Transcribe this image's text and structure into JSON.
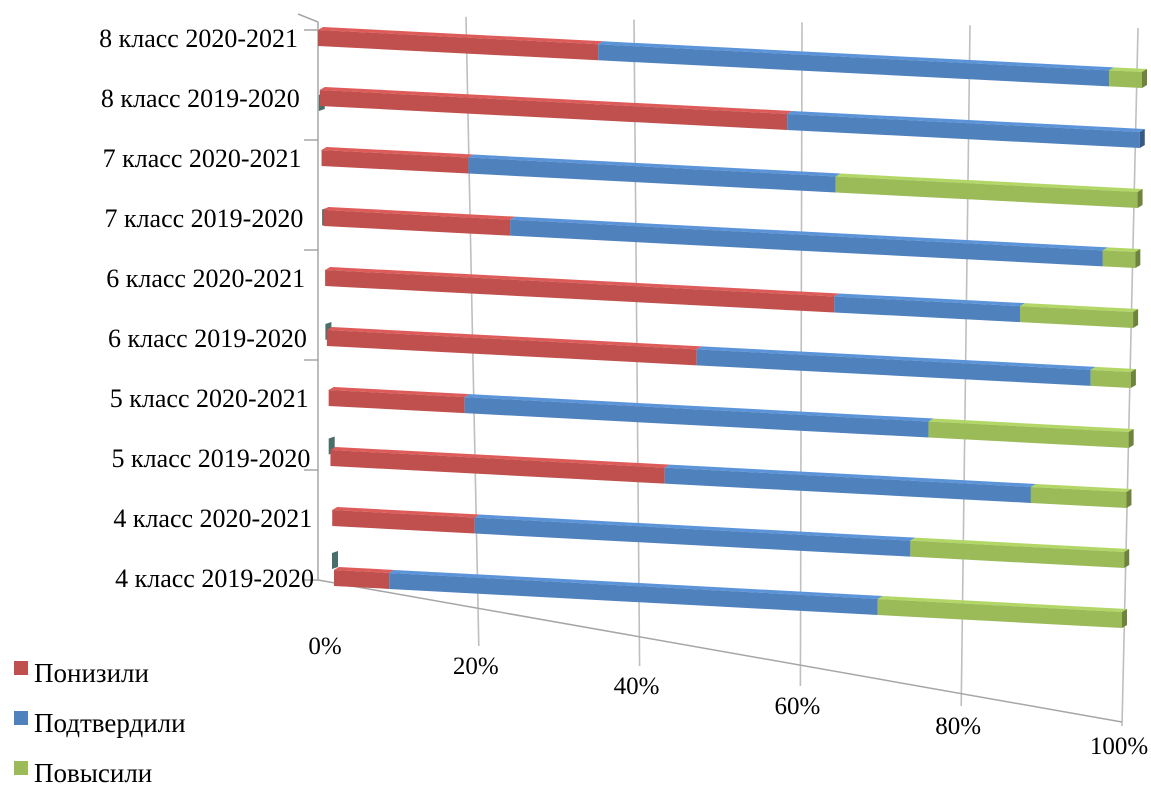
{
  "chart_data": {
    "type": "bar",
    "orientation": "horizontal",
    "stacking": "percent",
    "style": "3d",
    "categories": [
      "4 класс 2019-2020",
      "4 класс 2020-2021",
      "5 класс 2019-2020",
      "5 класс 2020-2021",
      "6 класс 2019-2020",
      "6 класс 2020-2021",
      "7 класс 2019-2020",
      "7 класс 2020-2021",
      "8 класс 2019-2020",
      "8 класс 2020-2021"
    ],
    "series": [
      {
        "name": "Понизили",
        "color": "#c0504d",
        "values": [
          7,
          18,
          42,
          17,
          46,
          63,
          23,
          18,
          57,
          34
        ]
      },
      {
        "name": "Подтвердили",
        "color": "#4f81bd",
        "values": [
          62,
          55,
          46,
          58,
          49,
          23,
          73,
          45,
          43,
          62
        ]
      },
      {
        "name": "Повысили",
        "color": "#9bbb59",
        "values": [
          31,
          27,
          12,
          25,
          5,
          14,
          4,
          37,
          0,
          4
        ]
      }
    ],
    "x_ticks": [
      "0%",
      "20%",
      "40%",
      "60%",
      "80%",
      "100%"
    ],
    "xlim": [
      0,
      100
    ],
    "grid": true,
    "legend_position": "bottom-left"
  }
}
